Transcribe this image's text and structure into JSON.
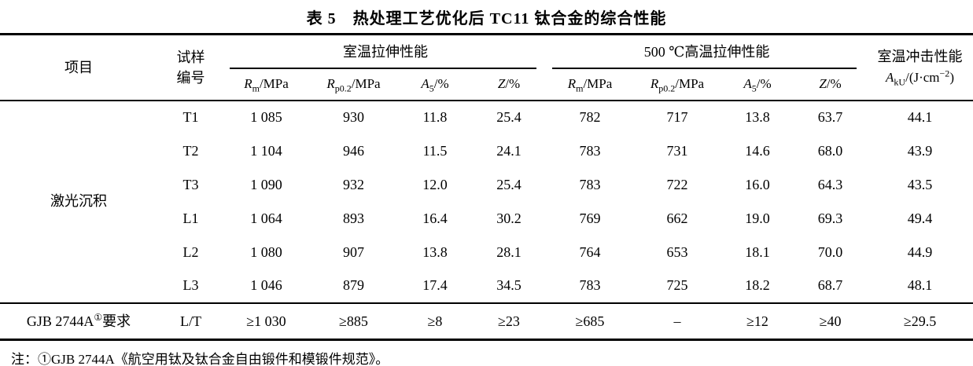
{
  "title": "表 5　热处理工艺优化后 TC11 钛合金的综合性能",
  "table": {
    "header": {
      "project": "项目",
      "sample_line1": "试样",
      "sample_line2": "编号",
      "group_room": "室温拉伸性能",
      "group_high": "500 ℃高温拉伸性能",
      "impact_line1": "室温冲击性能",
      "impact_symbol": {
        "base": "A",
        "sub": "kU",
        "unit_pre": "/(J·cm",
        "sup": "−2",
        "unit_post": ")"
      }
    },
    "subcols": [
      {
        "key": "rm",
        "base": "R",
        "sub": "m",
        "unit": "/MPa"
      },
      {
        "key": "rp02",
        "base": "R",
        "sub": "p0.2",
        "unit": "/MPa"
      },
      {
        "key": "a5",
        "base": "A",
        "sub": "5",
        "unit": "/%"
      },
      {
        "key": "z",
        "base": "Z",
        "sub": "",
        "unit": "/%"
      }
    ],
    "project_label": "激光沉积",
    "rows": [
      {
        "sample": "T1",
        "values": [
          "1 085",
          "930",
          "11.8",
          "25.4",
          "782",
          "717",
          "13.8",
          "63.7",
          "44.1"
        ]
      },
      {
        "sample": "T2",
        "values": [
          "1 104",
          "946",
          "11.5",
          "24.1",
          "783",
          "731",
          "14.6",
          "68.0",
          "43.9"
        ]
      },
      {
        "sample": "T3",
        "values": [
          "1 090",
          "932",
          "12.0",
          "25.4",
          "783",
          "722",
          "16.0",
          "64.3",
          "43.5"
        ]
      },
      {
        "sample": "L1",
        "values": [
          "1 064",
          "893",
          "16.4",
          "30.2",
          "769",
          "662",
          "19.0",
          "69.3",
          "49.4"
        ]
      },
      {
        "sample": "L2",
        "values": [
          "1 080",
          "907",
          "13.8",
          "28.1",
          "764",
          "653",
          "18.1",
          "70.0",
          "44.9"
        ]
      },
      {
        "sample": "L3",
        "values": [
          "1 046",
          "879",
          "17.4",
          "34.5",
          "783",
          "725",
          "18.2",
          "68.7",
          "48.1"
        ]
      }
    ],
    "requirement": {
      "label_pre": "GJB 2744A",
      "label_sup": "①",
      "label_post": "要求",
      "sample": "L/T",
      "values": [
        "≥1 030",
        "≥885",
        "≥8",
        "≥23",
        "≥685",
        "–",
        "≥12",
        "≥40",
        "≥29.5"
      ]
    }
  },
  "note": "注：①GJB 2744A《航空用钛及钛合金自由锻件和模锻件规范》。",
  "colors": {
    "text": "#000000",
    "background": "#ffffff",
    "rule": "#000000"
  }
}
